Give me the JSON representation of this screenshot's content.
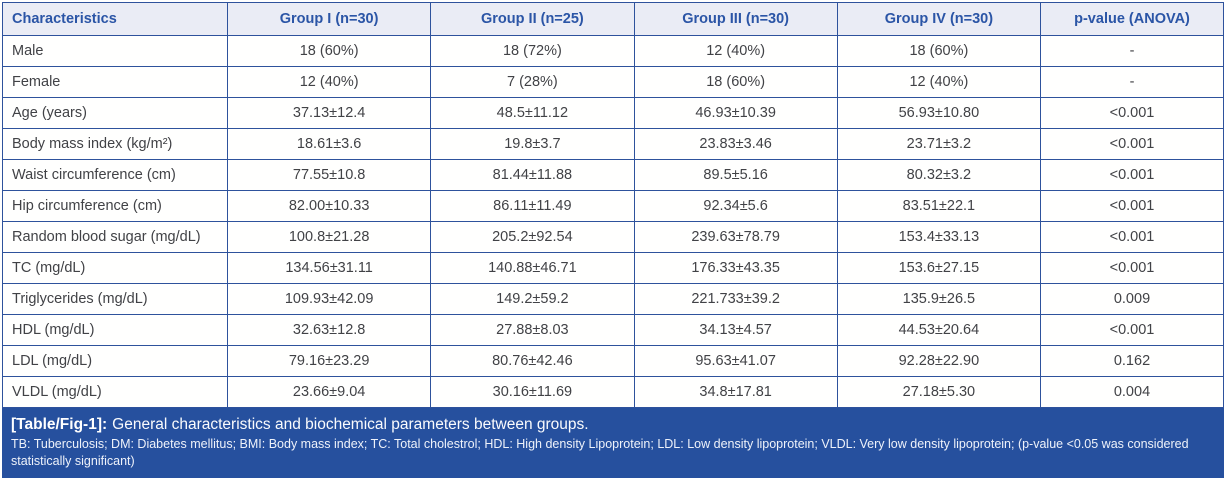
{
  "table": {
    "columns": [
      "Characteristics",
      "Group I (n=30)",
      "Group II (n=25)",
      "Group III (n=30)",
      "Group IV (n=30)",
      "p-value (ANOVA)"
    ],
    "rows": [
      {
        "label": "Male",
        "values": [
          "18 (60%)",
          "18 (72%)",
          "12 (40%)",
          "18 (60%)",
          "-"
        ]
      },
      {
        "label": "Female",
        "values": [
          "12 (40%)",
          "7 (28%)",
          "18 (60%)",
          "12 (40%)",
          "-"
        ]
      },
      {
        "label": "Age (years)",
        "values": [
          "37.13±12.4",
          "48.5±11.12",
          "46.93±10.39",
          "56.93±10.80",
          "<0.001"
        ]
      },
      {
        "label": "Body mass index (kg/m²)",
        "values": [
          "18.61±3.6",
          "19.8±3.7",
          "23.83±3.46",
          "23.71±3.2",
          "<0.001"
        ]
      },
      {
        "label": "Waist circumference (cm)",
        "values": [
          "77.55±10.8",
          "81.44±11.88",
          "89.5±5.16",
          "80.32±3.2",
          "<0.001"
        ]
      },
      {
        "label": "Hip circumference (cm)",
        "values": [
          "82.00±10.33",
          "86.11±11.49",
          "92.34±5.6",
          "83.51±22.1",
          "<0.001"
        ]
      },
      {
        "label": "Random blood sugar (mg/dL)",
        "values": [
          "100.8±21.28",
          "205.2±92.54",
          "239.63±78.79",
          "153.4±33.13",
          "<0.001"
        ]
      },
      {
        "label": "TC (mg/dL)",
        "values": [
          "134.56±31.11",
          "140.88±46.71",
          "176.33±43.35",
          "153.6±27.15",
          "<0.001"
        ]
      },
      {
        "label": "Triglycerides (mg/dL)",
        "values": [
          "109.93±42.09",
          "149.2±59.2",
          "221.733±39.2",
          "135.9±26.5",
          "0.009"
        ]
      },
      {
        "label": "HDL (mg/dL)",
        "values": [
          "32.63±12.8",
          "27.88±8.03",
          "34.13±4.57",
          "44.53±20.64",
          "<0.001"
        ]
      },
      {
        "label": "LDL (mg/dL)",
        "values": [
          "79.16±23.29",
          "80.76±42.46",
          "95.63±41.07",
          "92.28±22.90",
          "0.162"
        ]
      },
      {
        "label": "VLDL (mg/dL)",
        "values": [
          "23.66±9.04",
          "30.16±11.69",
          "34.8±17.81",
          "27.18±5.30",
          "0.004"
        ]
      }
    ]
  },
  "caption": {
    "tag": "[Table/Fig-1]:",
    "text": "General characteristics and biochemical parameters between groups.",
    "footnote": "TB: Tuberculosis; DM: Diabetes mellitus; BMI: Body mass index; TC: Total cholestrol; HDL: High density Lipoprotein; LDL: Low density lipoprotein; VLDL: Very low density lipoprotein; (p-value <0.05 was considered statistically significant)"
  },
  "colors": {
    "header_bg": "#eaecf5",
    "header_text": "#2b55a6",
    "border": "#2e529c",
    "body_text": "#414246",
    "caption_bg": "#26509e",
    "caption_text": "#ffffff"
  }
}
